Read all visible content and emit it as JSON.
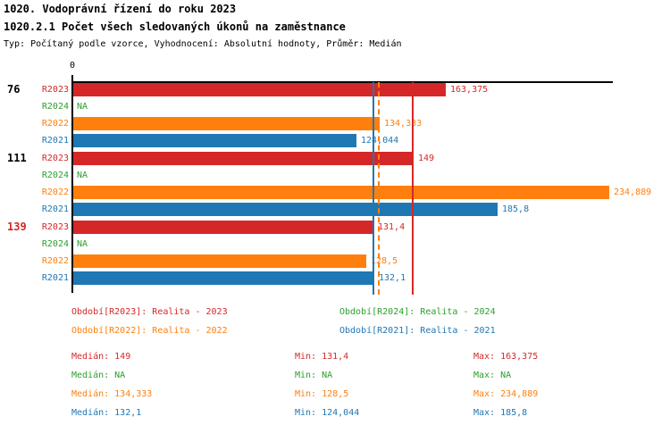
{
  "header": {
    "title1": "1020. Vodoprávní řízení do roku 2023",
    "title2": "1020.2.1 Počet všech sledovaných úkonů na zaměstnance",
    "subtitle": "Typ: Počítaný podle vzorce, Vyhodnocení: Absolutní hodnoty, Průměr: Medián"
  },
  "axis": {
    "origin_label": "0"
  },
  "series": {
    "R2023": {
      "color": "#d62728"
    },
    "R2024": {
      "color": "#2ca02c"
    },
    "R2022": {
      "color": "#ff7f0e"
    },
    "R2021": {
      "color": "#1f77b4"
    }
  },
  "chart_data": {
    "type": "bar",
    "orientation": "horizontal",
    "title": "1020.2.1 Počet všech sledovaných úkonů na zaměstnance",
    "xlabel": "",
    "ylabel": "",
    "xlim": [
      0,
      236
    ],
    "grid": false,
    "series_order": [
      "R2023",
      "R2024",
      "R2022",
      "R2021"
    ],
    "groups": [
      {
        "label": "76",
        "label_color": "#000000",
        "bars": [
          {
            "series": "R2023",
            "value": 163.375,
            "display": "163,375"
          },
          {
            "series": "R2024",
            "value": null,
            "display": "NA"
          },
          {
            "series": "R2022",
            "value": 134.333,
            "display": "134,333"
          },
          {
            "series": "R2021",
            "value": 124.044,
            "display": "124,044"
          }
        ]
      },
      {
        "label": "111",
        "label_color": "#000000",
        "bars": [
          {
            "series": "R2023",
            "value": 149,
            "display": "149"
          },
          {
            "series": "R2024",
            "value": null,
            "display": "NA"
          },
          {
            "series": "R2022",
            "value": 234.889,
            "display": "234,889"
          },
          {
            "series": "R2021",
            "value": 185.8,
            "display": "185,8"
          }
        ]
      },
      {
        "label": "139",
        "label_color": "#d62728",
        "bars": [
          {
            "series": "R2023",
            "value": 131.4,
            "display": "131,4"
          },
          {
            "series": "R2024",
            "value": null,
            "display": "NA"
          },
          {
            "series": "R2022",
            "value": 128.5,
            "display": "128,5"
          },
          {
            "series": "R2021",
            "value": 132.1,
            "display": "132,1"
          }
        ]
      }
    ],
    "median_lines": [
      {
        "series": "R2021",
        "value": 132.1,
        "style": "solid"
      },
      {
        "series": "R2022",
        "value": 134.333,
        "style": "dashed"
      },
      {
        "series": "R2023",
        "value": 149,
        "style": "solid"
      }
    ]
  },
  "legend": {
    "items": [
      {
        "series": "R2023",
        "label": "Období[R2023]: Realita - 2023"
      },
      {
        "series": "R2024",
        "label": "Období[R2024]: Realita - 2024"
      },
      {
        "series": "R2022",
        "label": "Období[R2022]: Realita - 2022"
      },
      {
        "series": "R2021",
        "label": "Období[R2021]: Realita - 2021"
      }
    ]
  },
  "stats": {
    "labels": {
      "median": "Medián",
      "min": "Min",
      "max": "Max"
    },
    "rows": [
      {
        "series": "R2023",
        "median": "149",
        "min": "131,4",
        "max": "163,375"
      },
      {
        "series": "R2024",
        "median": "NA",
        "min": "NA",
        "max": "NA"
      },
      {
        "series": "R2022",
        "median": "134,333",
        "min": "128,5",
        "max": "234,889"
      },
      {
        "series": "R2021",
        "median": "132,1",
        "min": "124,044",
        "max": "185,8"
      }
    ]
  }
}
